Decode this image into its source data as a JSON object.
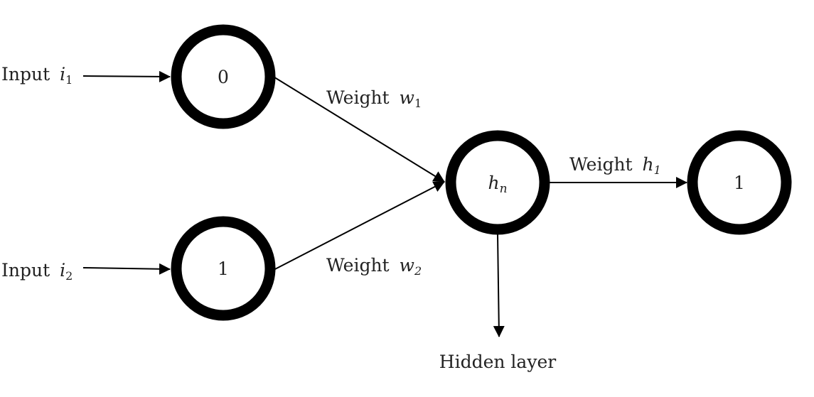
{
  "nodes": {
    "input1": {
      "value": "0"
    },
    "input2": {
      "value": "1"
    },
    "hidden": {
      "symbol": "h",
      "subscript": "n"
    },
    "output": {
      "value": "1"
    }
  },
  "labels": {
    "input1": {
      "text": "Input ",
      "var": "i",
      "sub": "1"
    },
    "input2": {
      "text": "Input ",
      "var": "i",
      "sub": "2"
    },
    "weight1": {
      "text": "Weight ",
      "var": "w",
      "sub": "1"
    },
    "weight2": {
      "text": "Weight ",
      "var": "w",
      "sub": "2"
    },
    "weight_h": {
      "text": "Weight ",
      "var": "h",
      "sub": "1"
    },
    "hidden_layer": "Hidden layer"
  },
  "colors": {
    "stroke": "#000000",
    "text": "#222222",
    "background": "#ffffff"
  }
}
